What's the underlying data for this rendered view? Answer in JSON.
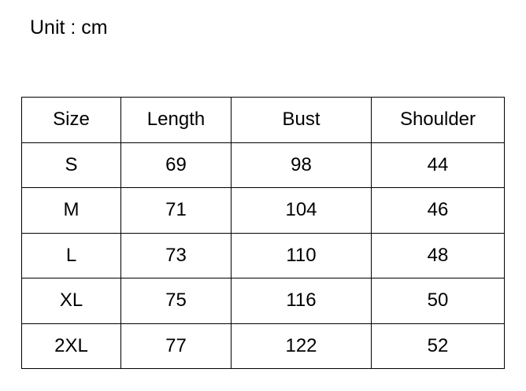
{
  "chart_data": {
    "type": "table",
    "title": "Unit : cm",
    "unit": "cm",
    "columns": [
      "Size",
      "Length",
      "Bust",
      "Shoulder"
    ],
    "rows": [
      [
        "S",
        69,
        98,
        44
      ],
      [
        "M",
        71,
        104,
        46
      ],
      [
        "L",
        73,
        110,
        48
      ],
      [
        "XL",
        75,
        116,
        50
      ],
      [
        "2XL",
        77,
        122,
        52
      ]
    ]
  },
  "colors": {
    "background": "#ffffff",
    "text": "#000000",
    "border": "#000000"
  }
}
